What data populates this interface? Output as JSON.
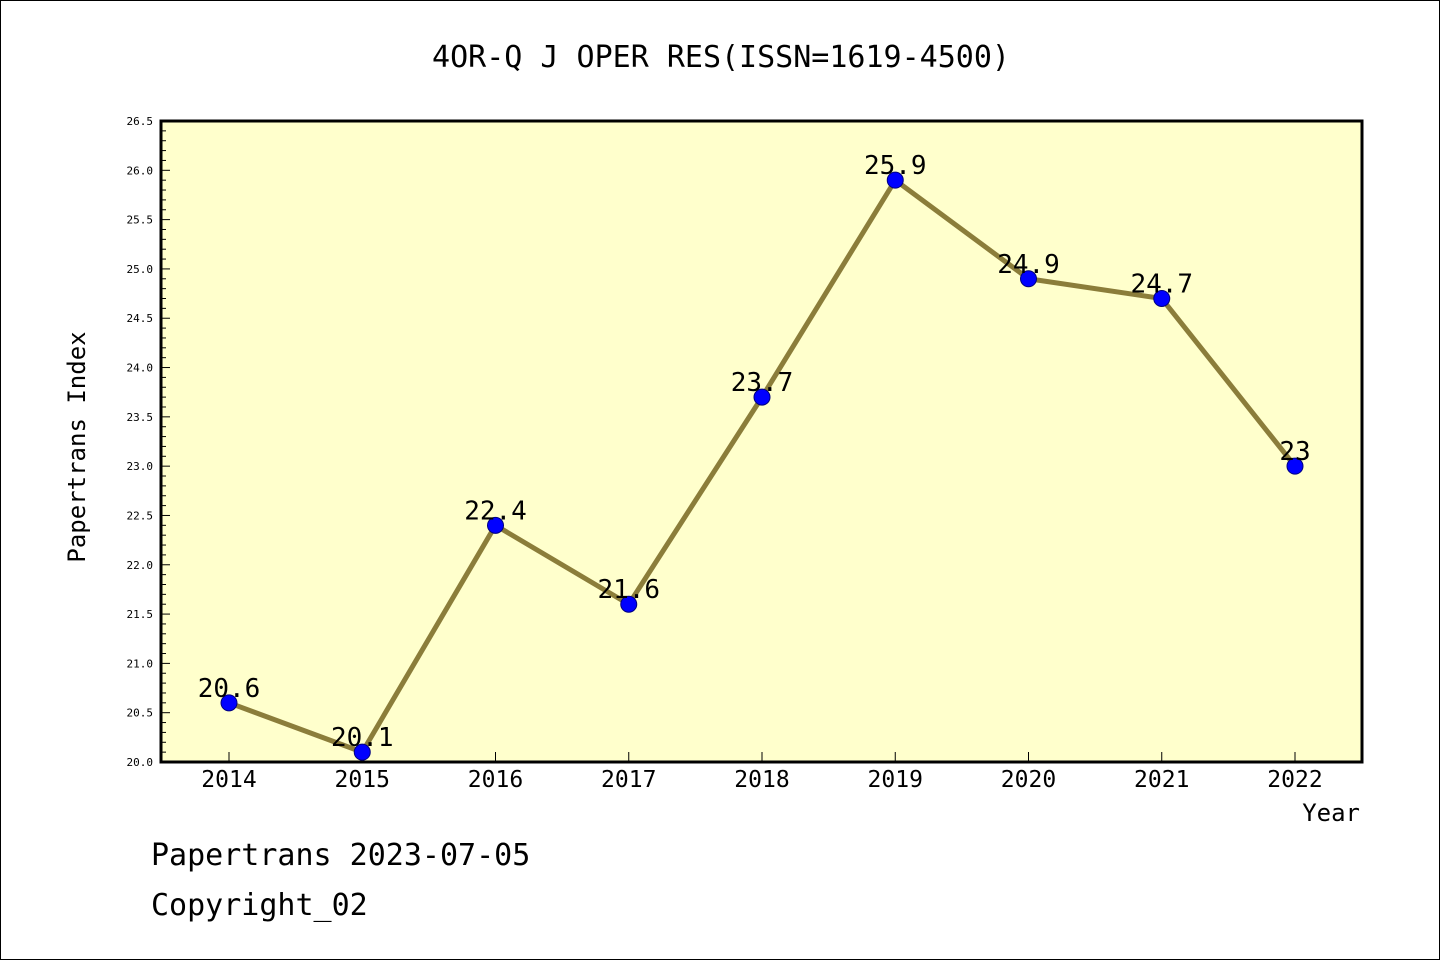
{
  "chart_data": {
    "type": "line",
    "title": "4OR-Q J OPER RES(ISSN=1619-4500)",
    "xlabel": "Year",
    "ylabel": "Papertrans Index",
    "categories": [
      "2014",
      "2015",
      "2016",
      "2017",
      "2018",
      "2019",
      "2020",
      "2021",
      "2022"
    ],
    "values": [
      20.6,
      20.1,
      22.4,
      21.6,
      23.7,
      25.9,
      24.9,
      24.7,
      23
    ],
    "data_labels": [
      "20.6",
      "20.1",
      "22.4",
      "21.6",
      "23.7",
      "25.9",
      "24.9",
      "24.7",
      "23"
    ],
    "ylim": [
      20.0,
      26.5
    ],
    "yticks": [
      "20.0",
      "20.5",
      "21.0",
      "21.5",
      "22.0",
      "22.5",
      "23.0",
      "23.5",
      "24.0",
      "24.5",
      "25.0",
      "25.5",
      "26.0",
      "26.5"
    ],
    "grid": false,
    "legend": "none",
    "colors": {
      "plot_background": "#ffffcc",
      "line": "#8b7d3a",
      "marker": "#0000ff",
      "marker_edge": "#000080"
    }
  },
  "footer": {
    "line1": "Papertrans 2023-07-05",
    "line2": "Copyright_02"
  }
}
